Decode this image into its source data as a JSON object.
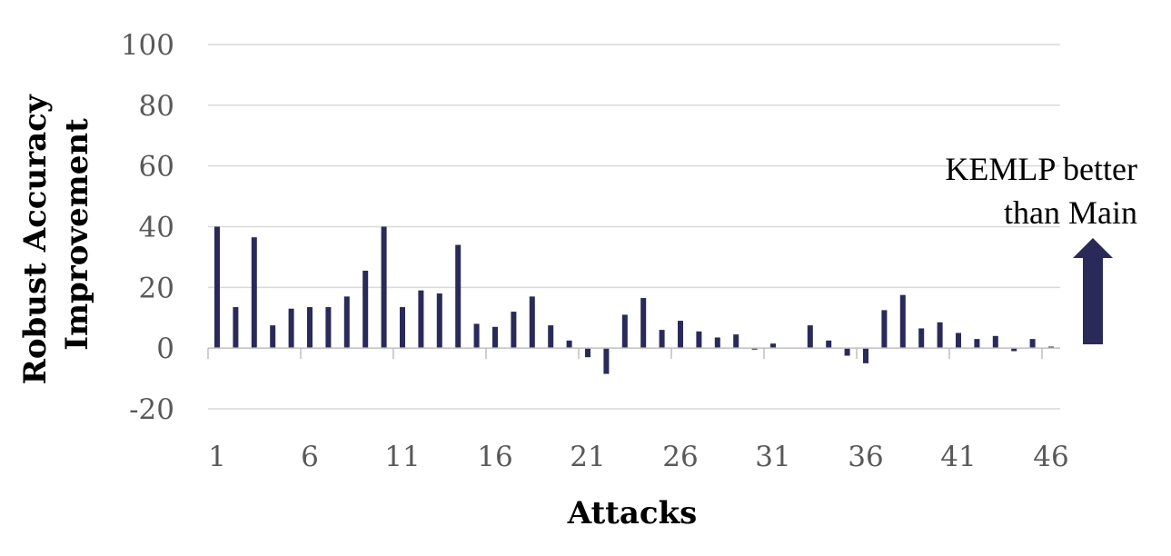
{
  "chart_data": {
    "type": "bar",
    "xlabel": "Attacks",
    "ylabel": "Robust Accuracy Improvement",
    "ylim": [
      -20,
      100
    ],
    "yticks": [
      100,
      80,
      60,
      40,
      20,
      0,
      -20
    ],
    "xtick_labels": [
      "1",
      "6",
      "11",
      "16",
      "21",
      "26",
      "31",
      "36",
      "41",
      "46"
    ],
    "categories": [
      1,
      2,
      3,
      4,
      5,
      6,
      7,
      8,
      9,
      10,
      11,
      12,
      13,
      14,
      15,
      16,
      17,
      18,
      19,
      20,
      21,
      22,
      23,
      24,
      25,
      26,
      27,
      28,
      29,
      30,
      31,
      32,
      33,
      34,
      35,
      36,
      37,
      38,
      39,
      40,
      41,
      42,
      43,
      44,
      45,
      46
    ],
    "values": [
      40,
      13.5,
      36.5,
      7.5,
      13,
      13.5,
      13.5,
      17,
      25.5,
      40,
      13.5,
      19,
      18,
      34,
      8,
      7,
      12,
      17,
      7.5,
      2.5,
      -3,
      -8.5,
      11,
      16.5,
      6,
      9,
      5.5,
      3.5,
      4.5,
      -0.5,
      1.5,
      0,
      7.5,
      2.5,
      -2.5,
      -5,
      12.5,
      17.5,
      6.5,
      8.5,
      5,
      3,
      4,
      -1,
      3,
      0.5
    ],
    "grid": true,
    "bar_color": "#2a2a5a",
    "annotation": {
      "line1": "KEMLP better",
      "line2": "than Main",
      "arrow_color": "#2a2a5a"
    }
  }
}
